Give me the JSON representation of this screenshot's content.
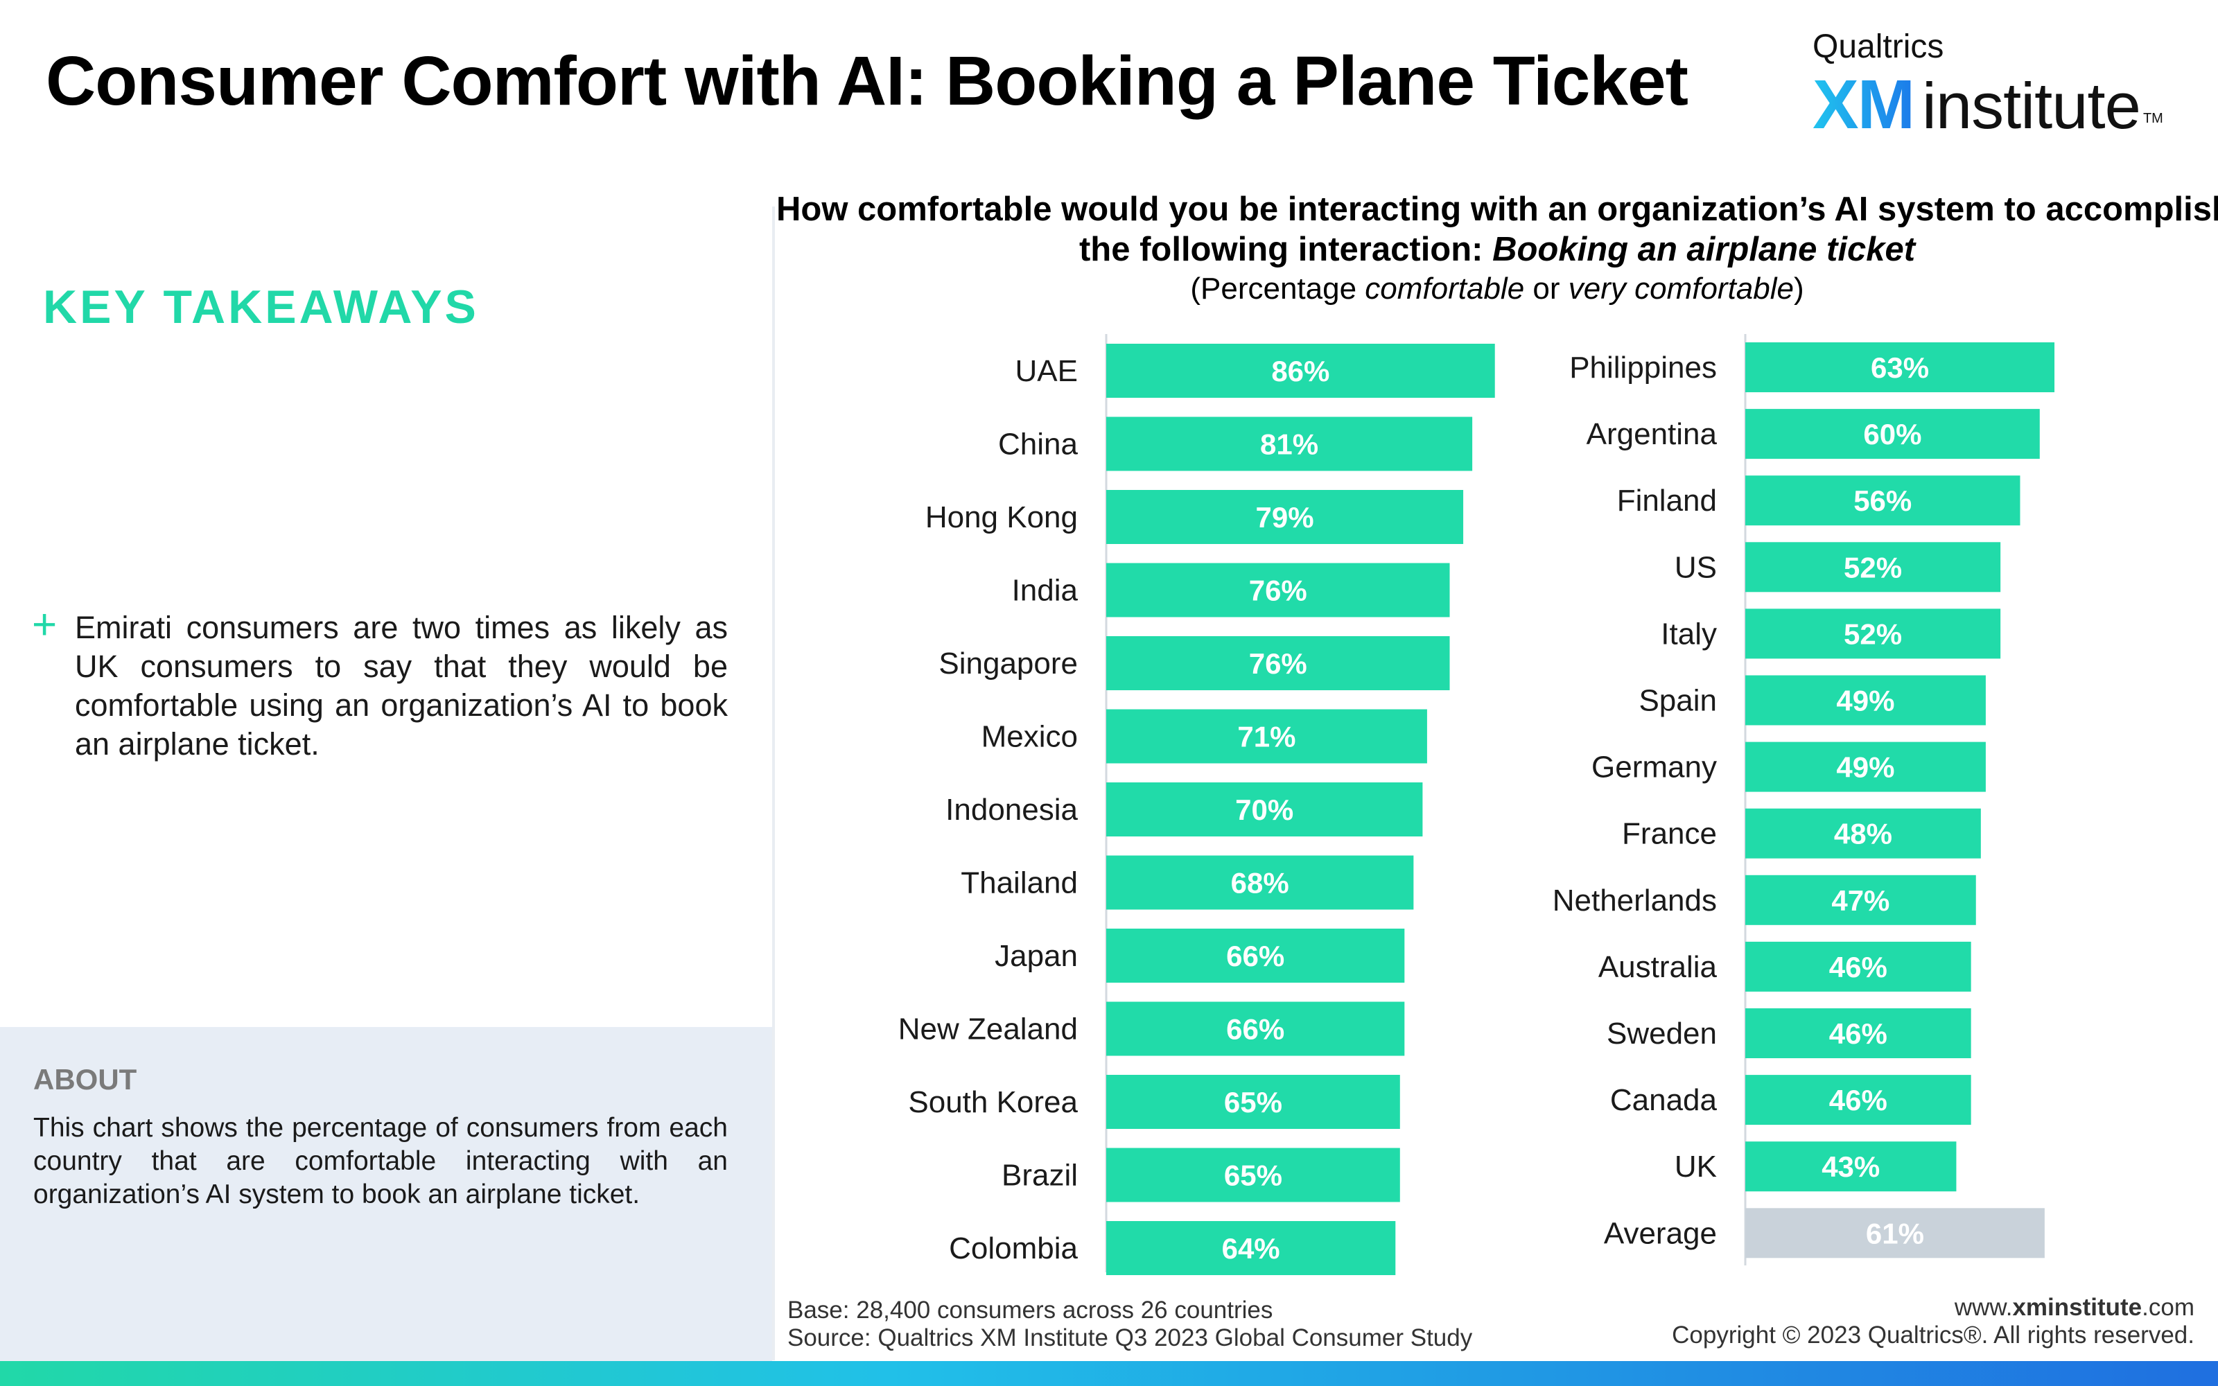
{
  "header": {
    "title": "Consumer Comfort with AI: Booking a Plane Ticket",
    "logo_small": "Qualtrics",
    "logo_xm": "XM",
    "logo_institute": "institute",
    "logo_tm": "TM"
  },
  "sidebar": {
    "heading": "KEY TAKEAWAYS",
    "takeaway": "Emirati consumers are two times as likely as UK consumers to say that they would be comfortable using an organization’s AI to book an airplane ticket.",
    "about_heading": "ABOUT",
    "about_text": "This chart shows the percentage of consumers from each country that are comfortable interacting with an organization’s AI system to book an airplane ticket."
  },
  "question": {
    "line1": "How comfortable would you be interacting with an organization’s AI system to accomplish",
    "line2_prefix": "the following interaction: ",
    "line2_italic": "Booking an airplane ticket",
    "line3_open": "(Percentage ",
    "line3_em1": "comfortable",
    "line3_mid": " or ",
    "line3_em2": "very comfortable",
    "line3_close": ")"
  },
  "colors": {
    "bar": "#21dba9",
    "average_bar": "#c9d2da",
    "accent": "#21d8a8"
  },
  "chart_data": [
    {
      "type": "bar",
      "orientation": "horizontal",
      "value_format": "percent",
      "categories": [
        "UAE",
        "China",
        "Hong Kong",
        "India",
        "Singapore",
        "Mexico",
        "Indonesia",
        "Thailand",
        "Japan",
        "New Zealand",
        "South Korea",
        "Brazil",
        "Colombia"
      ],
      "values": [
        86,
        81,
        79,
        76,
        76,
        71,
        70,
        68,
        66,
        66,
        65,
        65,
        64
      ],
      "data_labels": [
        "86%",
        "81%",
        "79%",
        "76%",
        "76%",
        "71%",
        "70%",
        "68%",
        "66%",
        "66%",
        "65%",
        "65%",
        "64%"
      ],
      "xlim": [
        0,
        86
      ]
    },
    {
      "type": "bar",
      "orientation": "horizontal",
      "value_format": "percent",
      "categories": [
        "Philippines",
        "Argentina",
        "Finland",
        "US",
        "Italy",
        "Spain",
        "Germany",
        "France",
        "Netherlands",
        "Australia",
        "Sweden",
        "Canada",
        "UK",
        "Average"
      ],
      "values": [
        63,
        60,
        56,
        52,
        52,
        49,
        49,
        48,
        47,
        46,
        46,
        46,
        43,
        61
      ],
      "data_labels": [
        "63%",
        "60%",
        "56%",
        "52%",
        "52%",
        "49%",
        "49%",
        "48%",
        "47%",
        "46%",
        "46%",
        "46%",
        "43%",
        "61%"
      ],
      "highlight": "Average",
      "xlim": [
        0,
        86
      ]
    }
  ],
  "footer": {
    "base": "Base: 28,400 consumers across 26 countries",
    "source": "Source: Qualtrics XM Institute Q3 2023 Global Consumer Study",
    "web_prefix": "www.",
    "web_bold": "xminstitute",
    "web_suffix": ".com",
    "copyright": "Copyright © 2023 Qualtrics®. All rights reserved."
  }
}
